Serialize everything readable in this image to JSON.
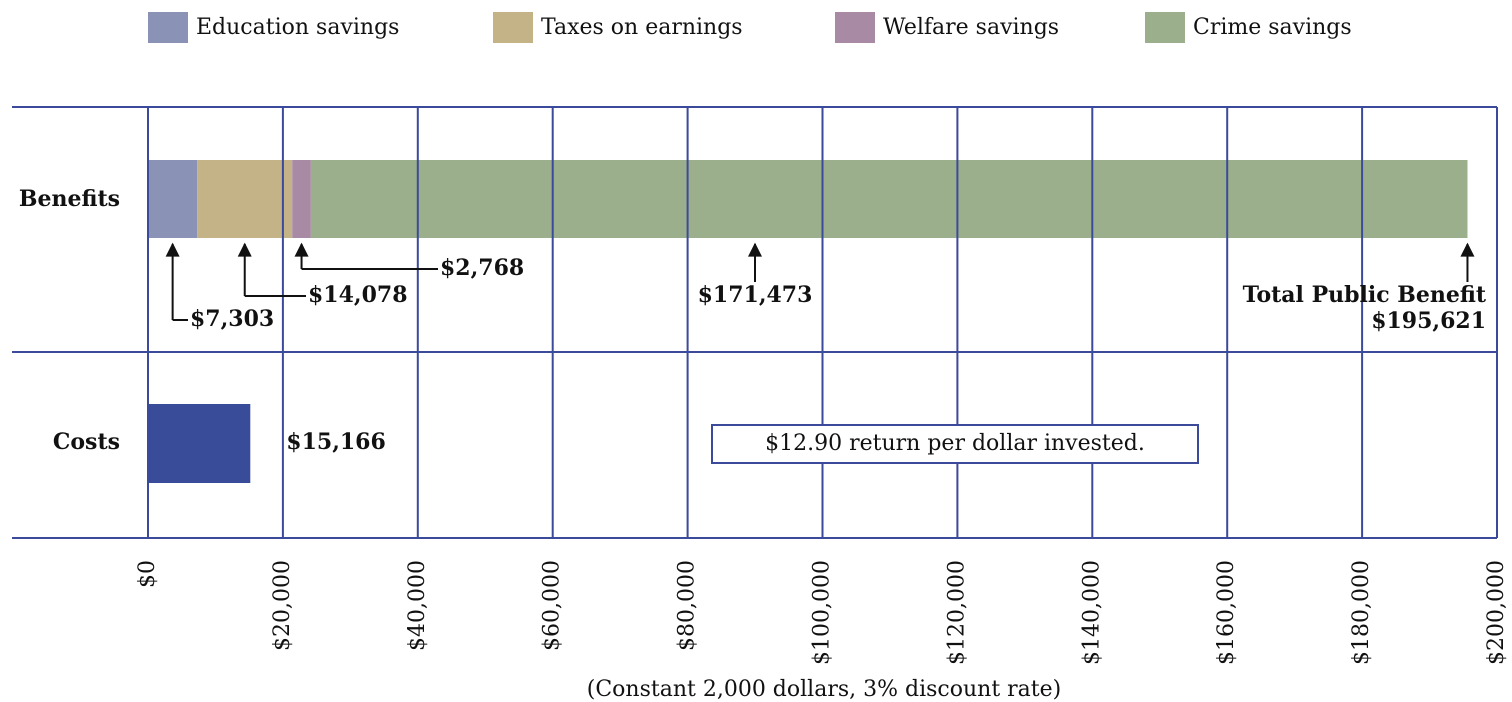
{
  "chart_data": {
    "type": "stacked_bar_horizontal",
    "categories": [
      "Benefits",
      "Costs"
    ],
    "series": [
      {
        "name": "Education savings",
        "color": "#8a93b5",
        "values": [
          7303,
          null
        ],
        "value_labels": [
          "$7,303",
          null
        ]
      },
      {
        "name": "Taxes on earnings",
        "color": "#c4b387",
        "values": [
          14078,
          null
        ],
        "value_labels": [
          "$14,078",
          null
        ]
      },
      {
        "name": "Welfare savings",
        "color": "#a98aa5",
        "values": [
          2768,
          null
        ],
        "value_labels": [
          "$2,768",
          null
        ]
      },
      {
        "name": "Crime savings",
        "color": "#9caf8c",
        "values": [
          171473,
          null
        ],
        "value_labels": [
          "$171,473",
          null
        ]
      }
    ],
    "costs": {
      "value": 15166,
      "value_label": "$15,166",
      "color": "#394c9a"
    },
    "total": {
      "label": "Total Public Benefit",
      "value": 195621,
      "value_label": "$195,621"
    },
    "annotation": "$12.90 return per dollar invested.",
    "xlabel": "(Constant 2,000 dollars, 3% discount rate)",
    "xlim": [
      0,
      200000
    ],
    "xticks": [
      {
        "value": 0,
        "label": "$0"
      },
      {
        "value": 20000,
        "label": "$20,000"
      },
      {
        "value": 40000,
        "label": "$40,000"
      },
      {
        "value": 60000,
        "label": "$60,000"
      },
      {
        "value": 80000,
        "label": "$80,000"
      },
      {
        "value": 100000,
        "label": "$100,000"
      },
      {
        "value": 120000,
        "label": "$120,000"
      },
      {
        "value": 140000,
        "label": "$140,000"
      },
      {
        "value": 160000,
        "label": "$160,000"
      },
      {
        "value": 180000,
        "label": "$180,000"
      },
      {
        "value": 200000,
        "label": "$200,000"
      }
    ],
    "grid": true,
    "grid_color": "#3b4a9a"
  }
}
